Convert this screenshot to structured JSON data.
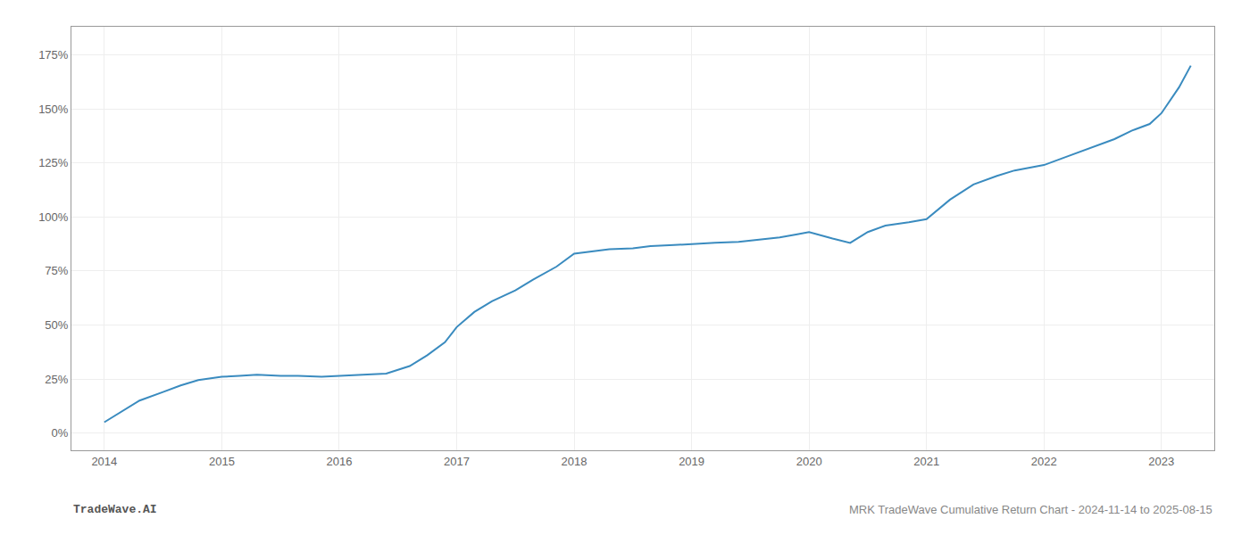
{
  "chart_data": {
    "type": "line",
    "x": [
      2014.0,
      2014.15,
      2014.3,
      2014.5,
      2014.65,
      2014.8,
      2015.0,
      2015.15,
      2015.3,
      2015.5,
      2015.65,
      2015.85,
      2016.0,
      2016.2,
      2016.4,
      2016.6,
      2016.75,
      2016.9,
      2017.0,
      2017.15,
      2017.3,
      2017.5,
      2017.65,
      2017.85,
      2018.0,
      2018.15,
      2018.3,
      2018.5,
      2018.65,
      2018.85,
      2019.0,
      2019.2,
      2019.4,
      2019.6,
      2019.75,
      2019.9,
      2020.0,
      2020.2,
      2020.35,
      2020.5,
      2020.65,
      2020.85,
      2021.0,
      2021.2,
      2021.4,
      2021.6,
      2021.75,
      2021.9,
      2022.0,
      2022.2,
      2022.4,
      2022.6,
      2022.75,
      2022.9,
      2023.0,
      2023.15,
      2023.25
    ],
    "values": [
      5.0,
      10.0,
      15.0,
      19.0,
      22.0,
      24.5,
      26.0,
      26.5,
      27.0,
      26.5,
      26.5,
      26.0,
      26.5,
      27.0,
      27.5,
      31.0,
      36.0,
      42.0,
      49.0,
      56.0,
      61.0,
      66.0,
      71.0,
      77.0,
      83.0,
      84.0,
      85.0,
      85.5,
      86.5,
      87.0,
      87.5,
      88.0,
      88.5,
      89.5,
      90.5,
      92.0,
      93.0,
      90.0,
      88.0,
      93.0,
      96.0,
      97.5,
      99.0,
      108.0,
      115.0,
      119.0,
      121.5,
      123.0,
      124.0,
      128.0,
      132.0,
      136.0,
      140.0,
      143.0,
      148.0,
      160.0,
      170.0
    ],
    "color": "#3a8bbf",
    "xlim": [
      2013.72,
      2023.45
    ],
    "xticks": [
      2014,
      2015,
      2016,
      2017,
      2018,
      2019,
      2020,
      2021,
      2022,
      2023
    ],
    "ylim": [
      -8,
      188
    ],
    "yticks": [
      {
        "value": 0,
        "label": "0%"
      },
      {
        "value": 25,
        "label": "25%"
      },
      {
        "value": 50,
        "label": "50%"
      },
      {
        "value": 75,
        "label": "75%"
      },
      {
        "value": 100,
        "label": "100%"
      },
      {
        "value": 125,
        "label": "125%"
      },
      {
        "value": 150,
        "label": "150%"
      },
      {
        "value": 175,
        "label": "175%"
      }
    ],
    "grid": true,
    "annotations": [
      "TradeWave.AI",
      "MRK TradeWave Cumulative Return Chart - 2024-11-14 to 2025-08-15"
    ]
  }
}
